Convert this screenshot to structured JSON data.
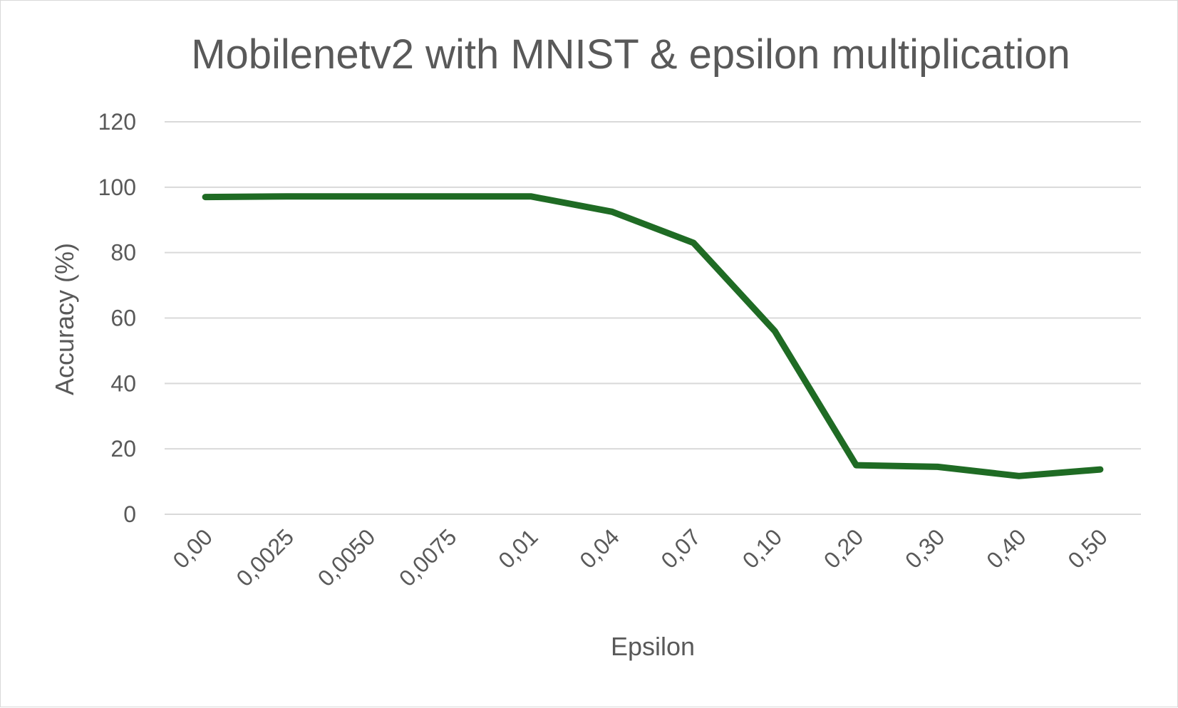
{
  "chart_data": {
    "type": "line",
    "title": "Mobilenetv2 with MNIST & epsilon multiplication",
    "xlabel": "Epsilon",
    "ylabel": "Accuracy (%)",
    "categories": [
      "0,00",
      "0,0025",
      "0,0050",
      "0,0075",
      "0,01",
      "0,04",
      "0,07",
      "0,10",
      "0,20",
      "0,30",
      "0,40",
      "0,50"
    ],
    "series": [
      {
        "values": [
          97,
          97.2,
          97.2,
          97.2,
          97.2,
          92.5,
          83,
          56,
          15,
          14.5,
          11.7,
          13.7
        ],
        "color": "#1f6b24"
      }
    ],
    "ylim": [
      0,
      120
    ],
    "yticks": [
      "0",
      "20",
      "40",
      "60",
      "80",
      "100",
      "120"
    ],
    "grid": true,
    "legend": "none"
  }
}
